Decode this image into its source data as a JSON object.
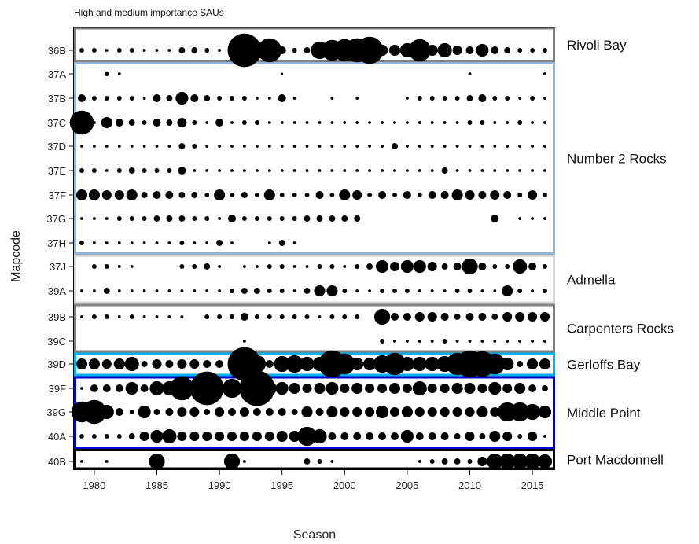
{
  "chart_data": {
    "type": "scatter",
    "title": "High and medium importance SAUs",
    "xlabel": "Season",
    "ylabel": "Mapcode",
    "xlim": [
      1978.5,
      2016.5
    ],
    "x_ticks": [
      "1980",
      "1985",
      "1990",
      "1995",
      "2000",
      "2005",
      "2010",
      "2015"
    ],
    "x_tick_values": [
      1980,
      1985,
      1990,
      1995,
      2000,
      2005,
      2010,
      2015
    ],
    "seasons": [
      1979,
      1980,
      1981,
      1982,
      1983,
      1984,
      1985,
      1986,
      1987,
      1988,
      1989,
      1990,
      1991,
      1992,
      1993,
      1994,
      1995,
      1996,
      1997,
      1998,
      1999,
      2000,
      2001,
      2002,
      2003,
      2004,
      2005,
      2006,
      2007,
      2008,
      2009,
      2010,
      2011,
      2012,
      2013,
      2014,
      2015,
      2016
    ],
    "size_scale_note": "relative bubble size 0-10",
    "mapcodes": [
      "36B",
      "37A",
      "37B",
      "37C",
      "37D",
      "37E",
      "37F",
      "37G",
      "37H",
      "37J",
      "39A",
      "39B",
      "39C",
      "39D",
      "39F",
      "39G",
      "40A",
      "40B"
    ],
    "rows": [
      {
        "mapcode": "36B",
        "sizes": [
          1,
          1,
          0.5,
          1,
          1,
          0.5,
          0.5,
          0.5,
          1.5,
          1.5,
          1,
          0.5,
          1,
          10,
          5,
          7,
          2,
          1,
          1.5,
          5,
          6,
          6.5,
          7,
          8,
          3,
          3,
          4,
          6.5,
          3,
          4,
          2.5,
          2,
          3.5,
          2,
          1.5,
          1,
          1,
          1
        ]
      },
      {
        "mapcode": "37A",
        "sizes": [
          0,
          0,
          1,
          0.5,
          0,
          0,
          0,
          0,
          0,
          0,
          0,
          0,
          0,
          0,
          0,
          0,
          0.3,
          0,
          0,
          0,
          0,
          0,
          0,
          0,
          0,
          0,
          0,
          0,
          0,
          0,
          0,
          0.5,
          0,
          0,
          0,
          0,
          0,
          0.5
        ]
      },
      {
        "mapcode": "37B",
        "sizes": [
          2,
          1,
          1,
          1,
          1,
          0.5,
          2,
          1.5,
          3.5,
          2,
          1.5,
          1,
          1,
          1,
          0.5,
          0.5,
          2,
          0.5,
          0,
          0,
          0.5,
          0,
          0.5,
          0,
          0,
          0,
          0.5,
          1,
          1,
          1,
          1,
          1.5,
          2,
          1,
          1,
          0.5,
          1,
          0.5
        ]
      },
      {
        "mapcode": "37C",
        "sizes": [
          7,
          0.5,
          3,
          2,
          1.5,
          1,
          2,
          1.5,
          2.5,
          1,
          0.5,
          2,
          0.5,
          1,
          1,
          0.5,
          0.5,
          0.5,
          0.5,
          0.5,
          0.5,
          0.5,
          0.5,
          0.5,
          0.5,
          0.5,
          0.5,
          0.5,
          0.5,
          0.5,
          0.5,
          1,
          1,
          0.5,
          0.5,
          1,
          0.5,
          0.5
        ]
      },
      {
        "mapcode": "37D",
        "sizes": [
          0.5,
          0.5,
          0.5,
          0.5,
          0.5,
          0.5,
          0.5,
          0.5,
          1.5,
          1,
          0.5,
          0.5,
          0.5,
          0.5,
          0.5,
          0.5,
          0.5,
          0.5,
          0.5,
          0.5,
          0.5,
          0.5,
          0.5,
          0.5,
          0.5,
          1.5,
          0.5,
          0.5,
          0.5,
          0.5,
          0.5,
          0.5,
          0.5,
          0.5,
          0.5,
          0.5,
          0.5,
          0.5
        ]
      },
      {
        "mapcode": "37E",
        "sizes": [
          1,
          1,
          0.5,
          1,
          1.5,
          1,
          1,
          1,
          2,
          0.5,
          0.5,
          0.5,
          0.5,
          0.5,
          0.5,
          0.5,
          0.5,
          0.5,
          0.5,
          0.5,
          0.5,
          0.5,
          0.5,
          0.5,
          0.5,
          0.5,
          0.5,
          0.5,
          0.5,
          1.5,
          0.5,
          0.5,
          0.5,
          0.5,
          0.5,
          0.5,
          0.5,
          0.5
        ]
      },
      {
        "mapcode": "37F",
        "sizes": [
          3,
          3,
          2.5,
          2.5,
          3,
          1.5,
          2,
          2,
          1.5,
          1.5,
          1,
          3,
          1,
          1.5,
          1,
          3,
          1,
          1,
          1,
          2,
          1,
          3,
          2.5,
          1,
          2,
          1,
          2,
          1,
          2,
          2,
          3,
          2.5,
          2,
          2.5,
          2,
          1,
          2.5,
          1
        ]
      },
      {
        "mapcode": "37G",
        "sizes": [
          0.5,
          0.5,
          0.5,
          1,
          1,
          1,
          1.5,
          1.5,
          1.5,
          1,
          1,
          0.5,
          2,
          1,
          1,
          1,
          1,
          1,
          1.5,
          1.5,
          1.5,
          1.5,
          1.5,
          0,
          0,
          0,
          0,
          0,
          0,
          0,
          0,
          0,
          0,
          2,
          0,
          0.5,
          0.5,
          0.5
        ]
      },
      {
        "mapcode": "37H",
        "sizes": [
          1,
          0.5,
          0.5,
          0.5,
          0.5,
          0.5,
          0.5,
          0.5,
          1,
          0.5,
          0.5,
          1.5,
          0.5,
          0,
          0,
          0.5,
          1.5,
          0.5,
          0,
          0,
          0,
          0,
          0,
          0,
          0,
          0,
          0,
          0,
          0,
          0,
          0,
          0,
          0,
          0,
          0,
          0,
          0,
          0
        ]
      },
      {
        "mapcode": "37J",
        "sizes": [
          0,
          1,
          1,
          0.5,
          0.5,
          0,
          0,
          0,
          1,
          1,
          1.5,
          0.5,
          0,
          0.5,
          0.5,
          1,
          1,
          0.5,
          0.5,
          1,
          1,
          0.5,
          1,
          1.5,
          3.5,
          2.5,
          3.5,
          3.5,
          2.5,
          1.5,
          2,
          4.5,
          2,
          1,
          1,
          4,
          2,
          1
        ]
      },
      {
        "mapcode": "39A",
        "sizes": [
          0.5,
          0.5,
          1.5,
          0.5,
          0.5,
          0.5,
          0.5,
          0.5,
          0.5,
          0.5,
          0.5,
          0.5,
          1,
          1.5,
          1.5,
          1,
          1,
          0.5,
          1.5,
          3,
          3,
          1,
          0.5,
          0.5,
          1,
          1,
          1,
          0.5,
          0.5,
          0.5,
          1,
          1,
          0.5,
          0.5,
          3,
          1,
          0.5,
          1
        ]
      },
      {
        "mapcode": "39B",
        "sizes": [
          0.5,
          1,
          1,
          0.5,
          1,
          0.5,
          0.5,
          0.5,
          0.5,
          0,
          1,
          1,
          1,
          2,
          1,
          1,
          1,
          1,
          1,
          0.5,
          1,
          1,
          1,
          0,
          4.5,
          2,
          2,
          2.5,
          2.5,
          2,
          1.5,
          2,
          2,
          1.5,
          2.5,
          2.5,
          2.5,
          2.5
        ]
      },
      {
        "mapcode": "39C",
        "sizes": [
          0,
          0,
          0,
          0,
          0,
          0,
          0,
          0,
          0,
          0,
          0,
          0,
          0,
          0.5,
          0,
          0,
          0,
          0,
          0,
          0,
          0,
          0,
          0,
          0,
          1,
          0.5,
          0.5,
          0.5,
          0.5,
          1,
          0.5,
          0.5,
          0.5,
          0.5,
          0.5,
          0.5,
          0.5,
          0.5
        ]
      },
      {
        "mapcode": "39D",
        "sizes": [
          3,
          3,
          2.5,
          3,
          4,
          1.5,
          2.5,
          2,
          2.5,
          2.5,
          2,
          2,
          1.5,
          10,
          5,
          2,
          4.5,
          5,
          4,
          4,
          8,
          6,
          3.5,
          3.5,
          5,
          6.5,
          4,
          4,
          4,
          4.5,
          6.5,
          8,
          7.5,
          6,
          3.5,
          1.5,
          3,
          3
        ]
      },
      {
        "mapcode": "39F",
        "sizes": [
          0.5,
          2,
          2,
          2,
          3.5,
          2,
          4,
          4,
          7,
          4,
          10,
          1,
          5.5,
          2,
          10.5,
          4,
          3.5,
          3,
          2.5,
          3,
          3.5,
          2.5,
          3,
          2.5,
          2.5,
          3,
          2.5,
          4,
          2.5,
          2.5,
          3,
          3,
          2.5,
          3.5,
          2.5,
          3,
          2,
          1.5
        ]
      },
      {
        "mapcode": "39G",
        "sizes": [
          6,
          7,
          4,
          2,
          1,
          3.5,
          1.5,
          2,
          2.5,
          2.5,
          1.5,
          2.5,
          2,
          2.5,
          2,
          2,
          2,
          1.5,
          3,
          2,
          3,
          2.5,
          2.5,
          2.5,
          3.5,
          2.5,
          3,
          2.5,
          2.5,
          2.5,
          2.5,
          2.5,
          3,
          2.5,
          5.5,
          5.5,
          4.5,
          3.5
        ]
      },
      {
        "mapcode": "40A",
        "sizes": [
          1,
          1,
          1,
          1,
          1.5,
          2.5,
          3.5,
          4,
          2.5,
          2.5,
          2.5,
          2.5,
          2.5,
          2.5,
          2.5,
          2.5,
          3,
          3,
          5.5,
          4,
          2,
          2,
          2,
          2,
          2,
          2,
          3.5,
          2,
          2,
          2,
          1.5,
          2.5,
          1.5,
          3,
          2.5,
          1,
          2.5,
          0.5
        ]
      },
      {
        "mapcode": "40B",
        "sizes": [
          0.5,
          0,
          0.5,
          0,
          0,
          0,
          4.5,
          0,
          0,
          0,
          0,
          0,
          4.5,
          0.5,
          0,
          0,
          0,
          0,
          1.5,
          1,
          0.5,
          0,
          0,
          0,
          0,
          0,
          0,
          0.5,
          1,
          1.5,
          1.5,
          1,
          2.5,
          4.5,
          4.5,
          4.5,
          4.5,
          4
        ]
      }
    ],
    "groups": [
      {
        "label": "Rivoli Bay",
        "first": "36B",
        "last": "36B",
        "color": "#808080"
      },
      {
        "label": "Number 2 Rocks",
        "first": "37A",
        "last": "37H",
        "color": "#95B3D7"
      },
      {
        "label": "Admella",
        "first": "37J",
        "last": "39A",
        "color": "#D9D9D9"
      },
      {
        "label": "Carpenters Rocks",
        "first": "39B",
        "last": "39C",
        "color": "#808080"
      },
      {
        "label": "Gerloffs Bay",
        "first": "39D",
        "last": "39D",
        "color": "#00B0F0"
      },
      {
        "label": "Middle Point",
        "first": "39F",
        "last": "40A",
        "color": "#0000CC"
      },
      {
        "label": "Port Macdonnell",
        "first": "40B",
        "last": "40B",
        "color": "#000000"
      }
    ]
  }
}
